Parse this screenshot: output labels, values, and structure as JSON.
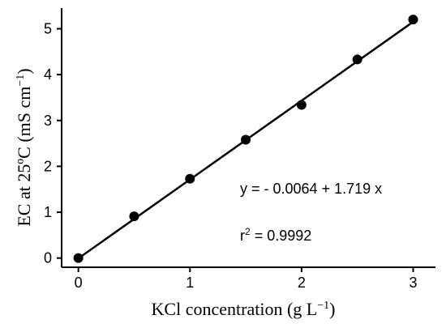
{
  "chart_data": {
    "type": "scatter",
    "xlabel": "KCl concentration (g  L",
    "xlabel_superscript": "−1",
    "xlabel_suffix": ")",
    "ylabel": "EC at 25ºC (mS cm",
    "ylabel_superscript": "−1",
    "ylabel_suffix": ")",
    "xlim": [
      -0.15,
      3.2
    ],
    "ylim": [
      -0.2,
      5.45
    ],
    "x_ticks": [
      0,
      1,
      2,
      3
    ],
    "y_ticks": [
      0,
      1,
      2,
      3,
      4,
      5
    ],
    "x_tick_labels": [
      "0",
      "1",
      "2",
      "3"
    ],
    "y_tick_labels": [
      "0",
      "1",
      "2",
      "3",
      "4",
      "5"
    ],
    "grid": false,
    "series": [
      {
        "x": [
          0,
          0.5,
          1.0,
          1.5,
          2.0,
          2.5,
          3.0
        ],
        "y": [
          0.0,
          0.91,
          1.73,
          2.58,
          3.34,
          4.33,
          5.2
        ]
      }
    ],
    "fit_line": {
      "intercept": -0.0064,
      "slope": 1.719,
      "x_range": [
        0,
        3
      ]
    },
    "annotations": {
      "equation": "y = - 0.0064 + 1.719 x",
      "r2_prefix": "r",
      "r2_superscript": "2",
      "r2_suffix": " = 0.9992"
    },
    "colors": {
      "marker": "#000000",
      "line": "#000000",
      "axis": "#000000"
    }
  }
}
